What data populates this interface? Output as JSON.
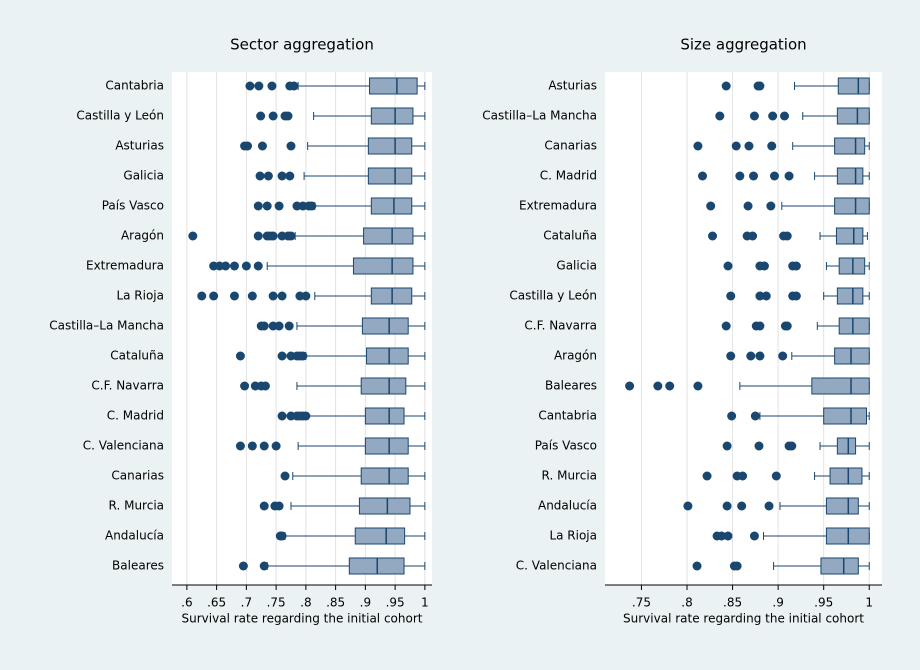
{
  "chart_data": [
    {
      "type": "boxplot",
      "title": "Sector aggregation",
      "xlabel": "Survival rate regarding the initial cohort",
      "box_color": "#93a9c1",
      "line_color": "#1a476f",
      "grid": true,
      "xlim": [
        0.575,
        1.012
      ],
      "xticks": [
        {
          "value": 0.6,
          "label": ".6"
        },
        {
          "value": 0.65,
          "label": ".65"
        },
        {
          "value": 0.7,
          "label": ".7"
        },
        {
          "value": 0.75,
          "label": ".75"
        },
        {
          "value": 0.8,
          "label": ".8"
        },
        {
          "value": 0.85,
          "label": ".85"
        },
        {
          "value": 0.9,
          "label": ".9"
        },
        {
          "value": 0.95,
          "label": ".95"
        },
        1
      ],
      "categories": [
        "Cantabria",
        "Castilla y León",
        "Asturias",
        "Galicia",
        "País Vasco",
        "Aragón",
        "Extremadura",
        "La Rioja",
        "Castilla–La Mancha",
        "Cataluña",
        "C.F. Navarra",
        "C. Madrid",
        "C. Valenciana",
        "Canarias",
        "R. Murcia",
        "Andalucía",
        "Baleares"
      ],
      "boxes": [
        {
          "whisker_low": 0.787,
          "q1": 0.907,
          "median": 0.953,
          "q3": 0.987,
          "whisker_high": 1,
          "outliers": [
            0.706,
            0.721,
            0.743,
            0.773,
            0.78
          ]
        },
        {
          "whisker_low": 0.813,
          "q1": 0.91,
          "median": 0.95,
          "q3": 0.98,
          "whisker_high": 1,
          "outliers": [
            0.724,
            0.745,
            0.765,
            0.77
          ]
        },
        {
          "whisker_low": 0.803,
          "q1": 0.905,
          "median": 0.95,
          "q3": 0.978,
          "whisker_high": 1,
          "outliers": [
            0.697,
            0.702,
            0.727,
            0.775
          ]
        },
        {
          "whisker_low": 0.797,
          "q1": 0.905,
          "median": 0.95,
          "q3": 0.978,
          "whisker_high": 1,
          "outliers": [
            0.723,
            0.737,
            0.76,
            0.773
          ]
        },
        {
          "whisker_low": 0.815,
          "q1": 0.91,
          "median": 0.948,
          "q3": 0.978,
          "whisker_high": 1,
          "outliers": [
            0.72,
            0.735,
            0.755,
            0.785,
            0.795,
            0.805,
            0.81
          ]
        },
        {
          "whisker_low": 0.782,
          "q1": 0.897,
          "median": 0.945,
          "q3": 0.98,
          "whisker_high": 1,
          "outliers": [
            0.61,
            0.72,
            0.735,
            0.74,
            0.745,
            0.76,
            0.77,
            0.775
          ]
        },
        {
          "whisker_low": 0.735,
          "q1": 0.88,
          "median": 0.945,
          "q3": 0.98,
          "whisker_high": 1,
          "outliers": [
            0.645,
            0.655,
            0.665,
            0.68,
            0.7,
            0.72
          ]
        },
        {
          "whisker_low": 0.815,
          "q1": 0.91,
          "median": 0.945,
          "q3": 0.978,
          "whisker_high": 1,
          "outliers": [
            0.625,
            0.645,
            0.68,
            0.71,
            0.745,
            0.76,
            0.79,
            0.8
          ]
        },
        {
          "whisker_low": 0.785,
          "q1": 0.895,
          "median": 0.94,
          "q3": 0.972,
          "whisker_high": 1,
          "outliers": [
            0.725,
            0.73,
            0.745,
            0.755,
            0.772
          ]
        },
        {
          "whisker_low": 0.8,
          "q1": 0.902,
          "median": 0.94,
          "q3": 0.972,
          "whisker_high": 1,
          "outliers": [
            0.69,
            0.76,
            0.775,
            0.785,
            0.79,
            0.795
          ]
        },
        {
          "whisker_low": 0.785,
          "q1": 0.893,
          "median": 0.94,
          "q3": 0.968,
          "whisker_high": 1,
          "outliers": [
            0.697,
            0.715,
            0.725,
            0.732
          ]
        },
        {
          "whisker_low": 0.803,
          "q1": 0.9,
          "median": 0.94,
          "q3": 0.965,
          "whisker_high": 1,
          "outliers": [
            0.76,
            0.775,
            0.785,
            0.79,
            0.795,
            0.8
          ]
        },
        {
          "whisker_low": 0.787,
          "q1": 0.9,
          "median": 0.94,
          "q3": 0.972,
          "whisker_high": 1,
          "outliers": [
            0.69,
            0.71,
            0.73,
            0.75
          ]
        },
        {
          "whisker_low": 0.778,
          "q1": 0.893,
          "median": 0.94,
          "q3": 0.972,
          "whisker_high": 1,
          "outliers": [
            0.765
          ]
        },
        {
          "whisker_low": 0.775,
          "q1": 0.89,
          "median": 0.937,
          "q3": 0.975,
          "whisker_high": 1,
          "outliers": [
            0.73,
            0.748,
            0.755
          ]
        },
        {
          "whisker_low": 0.765,
          "q1": 0.883,
          "median": 0.935,
          "q3": 0.966,
          "whisker_high": 1,
          "outliers": [
            0.757,
            0.76
          ]
        },
        {
          "whisker_low": 0.735,
          "q1": 0.873,
          "median": 0.92,
          "q3": 0.965,
          "whisker_high": 1,
          "outliers": [
            0.695,
            0.73
          ]
        }
      ]
    },
    {
      "type": "boxplot",
      "title": "Size aggregation",
      "xlabel": "Survival rate regarding the initial cohort",
      "box_color": "#93a9c1",
      "line_color": "#1a476f",
      "grid": true,
      "xlim": [
        0.71,
        1.014
      ],
      "xticks": [
        {
          "value": 0.75,
          "label": ".75"
        },
        {
          "value": 0.8,
          "label": ".8"
        },
        {
          "value": 0.85,
          "label": ".85"
        },
        {
          "value": 0.9,
          "label": ".9"
        },
        {
          "value": 0.95,
          "label": ".95"
        },
        1
      ],
      "categories": [
        "Asturias",
        "Castilla–La Mancha",
        "Canarias",
        "C. Madrid",
        "Extremadura",
        "Cataluña",
        "Galicia",
        "Castilla y León",
        "C.F. Navarra",
        "Aragón",
        "Baleares",
        "Cantabria",
        "País Vasco",
        "R. Murcia",
        "Andalucía",
        "La Rioja",
        "C. Valenciana"
      ],
      "boxes": [
        {
          "whisker_low": 0.918,
          "q1": 0.966,
          "median": 0.988,
          "q3": 1,
          "whisker_high": 1,
          "outliers": [
            0.843,
            0.878,
            0.88
          ]
        },
        {
          "whisker_low": 0.927,
          "q1": 0.965,
          "median": 0.987,
          "q3": 1,
          "whisker_high": 1,
          "outliers": [
            0.836,
            0.874,
            0.894,
            0.907
          ]
        },
        {
          "whisker_low": 0.916,
          "q1": 0.962,
          "median": 0.985,
          "q3": 0.995,
          "whisker_high": 1,
          "outliers": [
            0.812,
            0.854,
            0.868,
            0.893
          ]
        },
        {
          "whisker_low": 0.94,
          "q1": 0.965,
          "median": 0.985,
          "q3": 0.993,
          "whisker_high": 1,
          "outliers": [
            0.817,
            0.858,
            0.873,
            0.896,
            0.912
          ]
        },
        {
          "whisker_low": 0.904,
          "q1": 0.962,
          "median": 0.985,
          "q3": 1,
          "whisker_high": 1,
          "outliers": [
            0.826,
            0.867,
            0.892
          ]
        },
        {
          "whisker_low": 0.946,
          "q1": 0.964,
          "median": 0.983,
          "q3": 0.993,
          "whisker_high": 0.998,
          "outliers": [
            0.828,
            0.866,
            0.872,
            0.906,
            0.91
          ]
        },
        {
          "whisker_low": 0.953,
          "q1": 0.967,
          "median": 0.982,
          "q3": 0.995,
          "whisker_high": 1,
          "outliers": [
            0.845,
            0.88,
            0.885,
            0.916,
            0.92
          ]
        },
        {
          "whisker_low": 0.95,
          "q1": 0.965,
          "median": 0.982,
          "q3": 0.993,
          "whisker_high": 1,
          "outliers": [
            0.848,
            0.88,
            0.887,
            0.916,
            0.92
          ]
        },
        {
          "whisker_low": 0.943,
          "q1": 0.967,
          "median": 0.982,
          "q3": 1,
          "whisker_high": 1,
          "outliers": [
            0.843,
            0.876,
            0.88,
            0.908,
            0.91
          ]
        },
        {
          "whisker_low": 0.915,
          "q1": 0.962,
          "median": 0.98,
          "q3": 1,
          "whisker_high": 1,
          "outliers": [
            0.848,
            0.87,
            0.88,
            0.905
          ]
        },
        {
          "whisker_low": 0.858,
          "q1": 0.937,
          "median": 0.98,
          "q3": 1,
          "whisker_high": 1,
          "outliers": [
            0.737,
            0.768,
            0.781,
            0.812
          ]
        },
        {
          "whisker_low": 0.88,
          "q1": 0.95,
          "median": 0.98,
          "q3": 0.997,
          "whisker_high": 1,
          "outliers": [
            0.849,
            0.875
          ]
        },
        {
          "whisker_low": 0.946,
          "q1": 0.965,
          "median": 0.977,
          "q3": 0.985,
          "whisker_high": 1,
          "outliers": [
            0.844,
            0.879,
            0.912,
            0.915
          ]
        },
        {
          "whisker_low": 0.94,
          "q1": 0.957,
          "median": 0.977,
          "q3": 0.992,
          "whisker_high": 1,
          "outliers": [
            0.822,
            0.855,
            0.861,
            0.898
          ]
        },
        {
          "whisker_low": 0.902,
          "q1": 0.953,
          "median": 0.977,
          "q3": 0.988,
          "whisker_high": 1,
          "outliers": [
            0.801,
            0.844,
            0.86,
            0.89
          ]
        },
        {
          "whisker_low": 0.884,
          "q1": 0.953,
          "median": 0.977,
          "q3": 1,
          "whisker_high": 1,
          "outliers": [
            0.833,
            0.838,
            0.845,
            0.874
          ]
        },
        {
          "whisker_low": 0.895,
          "q1": 0.947,
          "median": 0.972,
          "q3": 0.988,
          "whisker_high": 1,
          "outliers": [
            0.811,
            0.852,
            0.855
          ]
        }
      ]
    }
  ]
}
